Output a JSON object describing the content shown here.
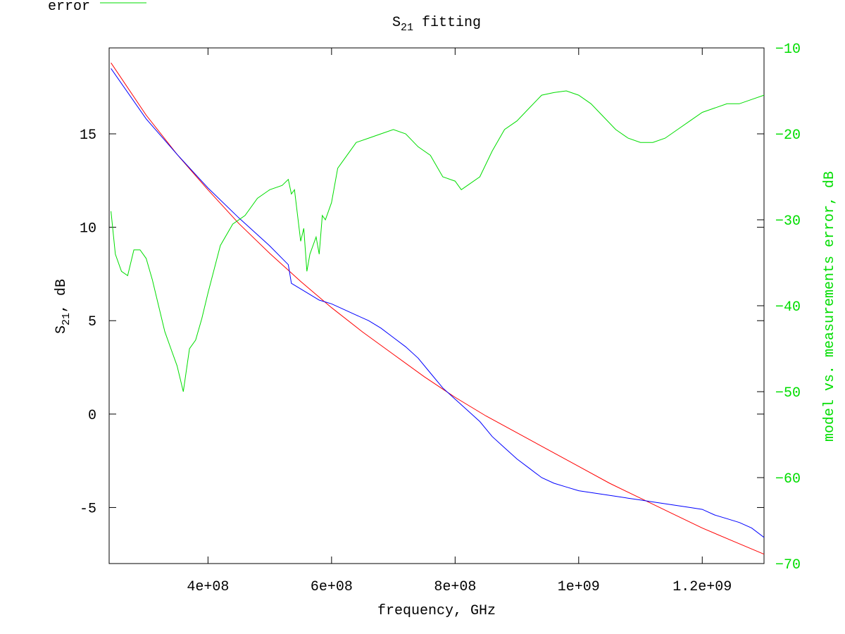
{
  "chart_data": {
    "type": "line",
    "title": "S",
    "title_sub": "21",
    "title_rest": " fitting",
    "xlabel": "frequency, GHz",
    "ylabel_left": "S",
    "ylabel_left_sub": "21",
    "ylabel_left_rest": ", dB",
    "ylabel_right": "model vs. measurements error, dB",
    "xlim": [
      240000000,
      1300000000
    ],
    "ylim_left": [
      -8,
      19.6
    ],
    "ylim_right": [
      -70,
      -10
    ],
    "x_ticks": [
      400000000,
      600000000,
      800000000,
      1000000000,
      1200000000
    ],
    "x_tick_labels": [
      "4e+08",
      "6e+08",
      "8e+08",
      "1e+09",
      "1.2e+09"
    ],
    "y_left_ticks": [
      15,
      10,
      5,
      0,
      -5
    ],
    "y_left_tick_labels": [
      "15",
      "10",
      "5",
      "0",
      "-5"
    ],
    "y_right_ticks": [
      -10,
      -20,
      -30,
      -40,
      -50,
      -60,
      -70
    ],
    "y_right_tick_labels": [
      "−10",
      "−20",
      "−30",
      "−40",
      "−50",
      "−60",
      "−70"
    ],
    "grid": false,
    "legend": {
      "position": "top-left",
      "entries": [
        {
          "label": "error",
          "color": "#00dd00"
        }
      ]
    },
    "series": [
      {
        "color": "#ff0000",
        "axis": "left",
        "x": [
          243000000,
          300000000,
          350000000,
          400000000,
          450000000,
          500000000,
          550000000,
          600000000,
          650000000,
          700000000,
          750000000,
          800000000,
          850000000,
          900000000,
          950000000,
          1000000000,
          1050000000,
          1100000000,
          1150000000,
          1200000000,
          1250000000,
          1300000000
        ],
        "y": [
          18.8,
          16.0,
          13.9,
          12.0,
          10.2,
          8.6,
          7.1,
          5.7,
          4.4,
          3.2,
          2.0,
          0.9,
          -0.1,
          -1.0,
          -1.9,
          -2.8,
          -3.7,
          -4.5,
          -5.3,
          -6.1,
          -6.8,
          -7.5
        ]
      },
      {
        "color": "#0000ff",
        "axis": "left",
        "x": [
          243000000,
          300000000,
          350000000,
          400000000,
          450000000,
          500000000,
          530000000,
          535000000,
          560000000,
          580000000,
          600000000,
          620000000,
          640000000,
          660000000,
          680000000,
          700000000,
          720000000,
          740000000,
          760000000,
          780000000,
          800000000,
          820000000,
          840000000,
          860000000,
          880000000,
          900000000,
          920000000,
          940000000,
          960000000,
          980000000,
          1000000000,
          1020000000,
          1040000000,
          1060000000,
          1080000000,
          1100000000,
          1120000000,
          1140000000,
          1160000000,
          1180000000,
          1200000000,
          1220000000,
          1240000000,
          1260000000,
          1280000000,
          1300000000
        ],
        "y": [
          18.5,
          15.8,
          13.9,
          12.1,
          10.5,
          9.0,
          8.0,
          7.0,
          6.5,
          6.1,
          5.9,
          5.6,
          5.3,
          5.0,
          4.6,
          4.1,
          3.6,
          3.0,
          2.2,
          1.4,
          0.8,
          0.2,
          -0.4,
          -1.2,
          -1.8,
          -2.4,
          -2.9,
          -3.4,
          -3.7,
          -3.9,
          -4.1,
          -4.2,
          -4.3,
          -4.4,
          -4.5,
          -4.6,
          -4.7,
          -4.8,
          -4.9,
          -5.0,
          -5.1,
          -5.4,
          -5.6,
          -5.8,
          -6.1,
          -6.6
        ]
      },
      {
        "color": "#00dd00",
        "axis": "right",
        "x": [
          243000000,
          250000000,
          260000000,
          270000000,
          280000000,
          290000000,
          300000000,
          310000000,
          320000000,
          330000000,
          340000000,
          350000000,
          360000000,
          370000000,
          380000000,
          390000000,
          400000000,
          420000000,
          440000000,
          460000000,
          480000000,
          500000000,
          520000000,
          530000000,
          535000000,
          540000000,
          550000000,
          555000000,
          560000000,
          565000000,
          570000000,
          575000000,
          580000000,
          585000000,
          590000000,
          600000000,
          610000000,
          620000000,
          640000000,
          660000000,
          680000000,
          700000000,
          720000000,
          740000000,
          760000000,
          780000000,
          800000000,
          810000000,
          820000000,
          840000000,
          860000000,
          880000000,
          900000000,
          920000000,
          940000000,
          960000000,
          980000000,
          1000000000,
          1020000000,
          1040000000,
          1060000000,
          1080000000,
          1100000000,
          1120000000,
          1140000000,
          1160000000,
          1180000000,
          1200000000,
          1220000000,
          1240000000,
          1260000000,
          1280000000,
          1300000000
        ],
        "y": [
          -29,
          -34,
          -36,
          -36.5,
          -33.5,
          -33.5,
          -34.5,
          -37,
          -40,
          -43,
          -45,
          -47,
          -50,
          -45,
          -44,
          -41.5,
          -38.5,
          -33,
          -30.5,
          -29.5,
          -27.5,
          -26.5,
          -26,
          -25.3,
          -27,
          -26.5,
          -32.5,
          -31,
          -36,
          -34,
          -33,
          -32,
          -34,
          -29.5,
          -30,
          -28,
          -24,
          -23,
          -21,
          -20.5,
          -20,
          -19.5,
          -20,
          -21.5,
          -22.5,
          -25,
          -25.5,
          -26.5,
          -26,
          -25,
          -22,
          -19.5,
          -18.5,
          -17,
          -15.5,
          -15.2,
          -15,
          -15.5,
          -16.5,
          -18,
          -19.5,
          -20.5,
          -21,
          -21,
          -20.5,
          -19.5,
          -18.5,
          -17.5,
          -17,
          -16.5,
          -16.5,
          -16,
          -15.5
        ]
      }
    ]
  }
}
